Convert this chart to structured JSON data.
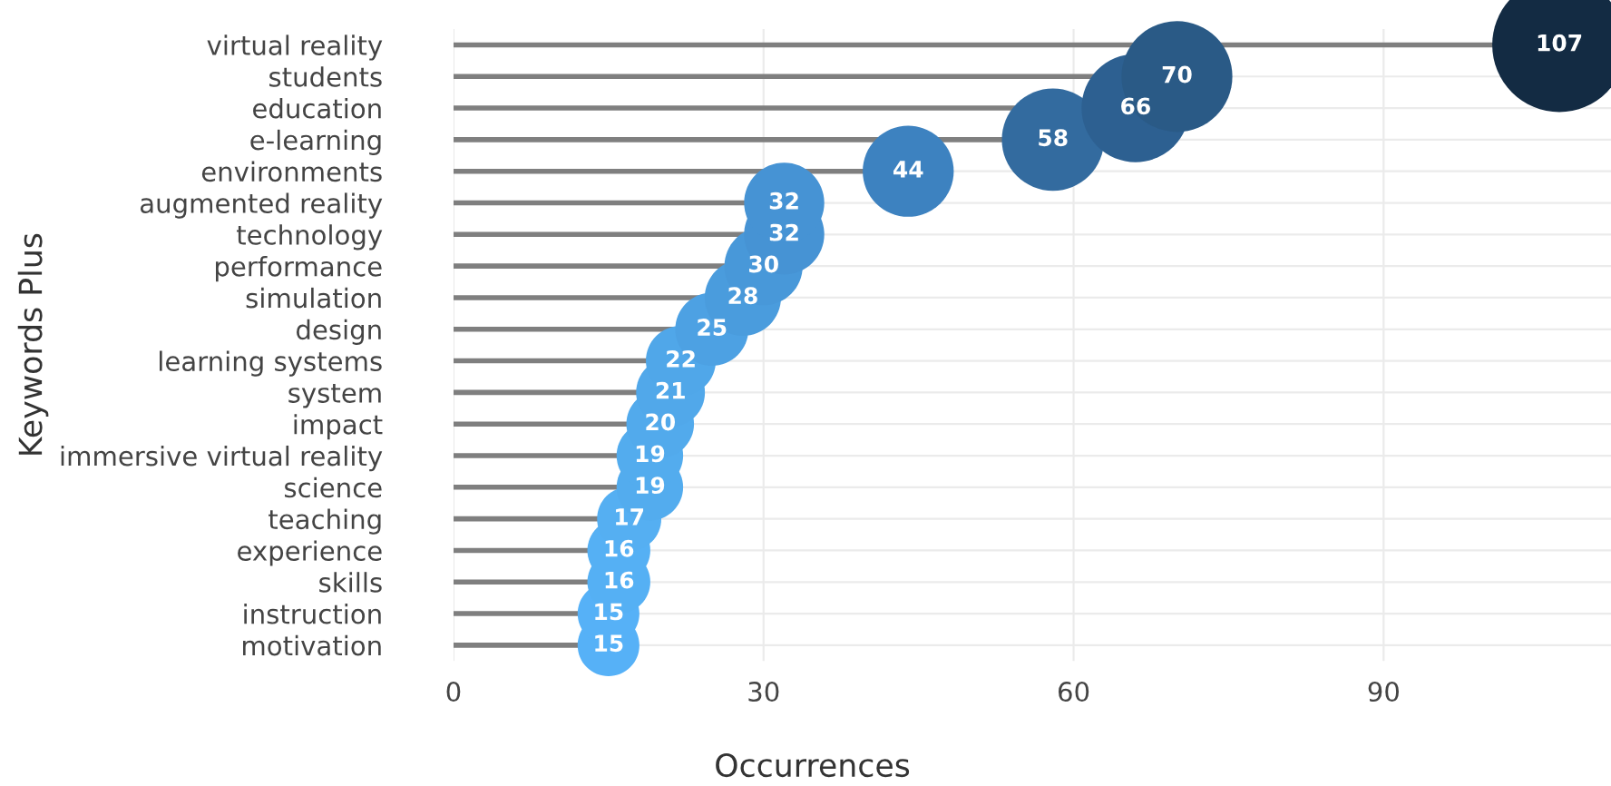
{
  "chart_data": {
    "type": "lollipop",
    "orientation": "horizontal",
    "xlabel": "Occurrences",
    "ylabel": "Keywords Plus",
    "categories": [
      "virtual reality",
      "students",
      "education",
      "e-learning",
      "environments",
      "augmented reality",
      "technology",
      "performance",
      "simulation",
      "design",
      "learning systems",
      "system",
      "impact",
      "immersive virtual reality",
      "science",
      "teaching",
      "experience",
      "skills",
      "instruction",
      "motivation"
    ],
    "values": [
      107,
      70,
      66,
      58,
      44,
      32,
      32,
      30,
      28,
      25,
      22,
      21,
      20,
      19,
      19,
      17,
      16,
      16,
      15,
      15
    ],
    "colors": [
      "#132b43",
      "#2a5a86",
      "#2d6091",
      "#336b9f",
      "#3d82c0",
      "#4693d4",
      "#4693d4",
      "#4898d9",
      "#4a9cdd",
      "#4da1e3",
      "#50a7e9",
      "#51a8ea",
      "#52aaec",
      "#53acee",
      "#53acee",
      "#55aff2",
      "#55b0f4",
      "#55b0f4",
      "#56b1f7",
      "#56b1f7"
    ],
    "sizes": [
      1,
      0.683,
      0.649,
      0.58,
      0.46,
      0.357,
      0.357,
      0.34,
      0.323,
      0.297,
      0.272,
      0.263,
      0.254,
      0.246,
      0.246,
      0.229,
      0.22,
      0.22,
      0.212,
      0.212
    ],
    "xlim": [
      0,
      112
    ],
    "xticks": [
      0,
      30,
      60,
      90
    ],
    "grid": true,
    "data_labels": true
  }
}
